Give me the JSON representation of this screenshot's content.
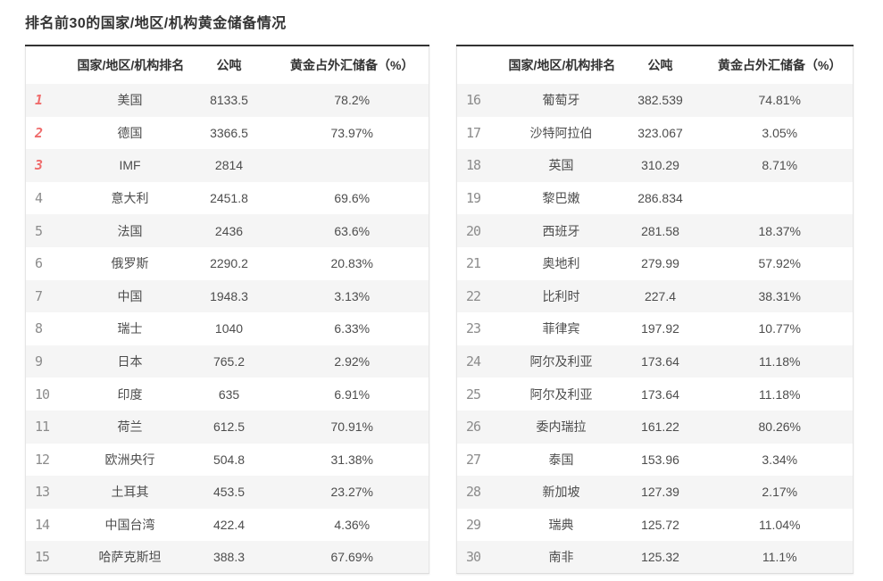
{
  "page_title": "排名前30的国家/地区/机构黄金储备情况",
  "colors": {
    "accent_rank_red": "#ef6b6b",
    "rank_gray": "#8c8c8c",
    "row_alt_bg": "#f5f5f5",
    "table_top_border": "#333333",
    "text": "#4d4d4d"
  },
  "tables": [
    {
      "headers": {
        "rank": "",
        "name": "国家/地区/机构排名",
        "tonnes": "公吨",
        "pct": "黄金占外汇储备（%）"
      },
      "rows": [
        {
          "rank": "1",
          "name": "美国",
          "tonnes": "8133.5",
          "pct": "78.2%",
          "top3": true
        },
        {
          "rank": "2",
          "name": "德国",
          "tonnes": "3366.5",
          "pct": "73.97%",
          "top3": true
        },
        {
          "rank": "3",
          "name": "IMF",
          "tonnes": "2814",
          "pct": "",
          "top3": true
        },
        {
          "rank": "4",
          "name": "意大利",
          "tonnes": "2451.8",
          "pct": "69.6%",
          "top3": false
        },
        {
          "rank": "5",
          "name": "法国",
          "tonnes": "2436",
          "pct": "63.6%",
          "top3": false
        },
        {
          "rank": "6",
          "name": "俄罗斯",
          "tonnes": "2290.2",
          "pct": "20.83%",
          "top3": false
        },
        {
          "rank": "7",
          "name": "中国",
          "tonnes": "1948.3",
          "pct": "3.13%",
          "top3": false
        },
        {
          "rank": "8",
          "name": "瑞士",
          "tonnes": "1040",
          "pct": "6.33%",
          "top3": false
        },
        {
          "rank": "9",
          "name": "日本",
          "tonnes": "765.2",
          "pct": "2.92%",
          "top3": false
        },
        {
          "rank": "10",
          "name": "印度",
          "tonnes": "635",
          "pct": "6.91%",
          "top3": false
        },
        {
          "rank": "11",
          "name": "荷兰",
          "tonnes": "612.5",
          "pct": "70.91%",
          "top3": false
        },
        {
          "rank": "12",
          "name": "欧洲央行",
          "tonnes": "504.8",
          "pct": "31.38%",
          "top3": false
        },
        {
          "rank": "13",
          "name": "土耳其",
          "tonnes": "453.5",
          "pct": "23.27%",
          "top3": false
        },
        {
          "rank": "14",
          "name": "中国台湾",
          "tonnes": "422.4",
          "pct": "4.36%",
          "top3": false
        },
        {
          "rank": "15",
          "name": "哈萨克斯坦",
          "tonnes": "388.3",
          "pct": "67.69%",
          "top3": false
        }
      ]
    },
    {
      "headers": {
        "rank": "",
        "name": "国家/地区/机构排名",
        "tonnes": "公吨",
        "pct": "黄金占外汇储备（%）"
      },
      "rows": [
        {
          "rank": "16",
          "name": "葡萄牙",
          "tonnes": "382.539",
          "pct": "74.81%",
          "top3": false
        },
        {
          "rank": "17",
          "name": "沙特阿拉伯",
          "tonnes": "323.067",
          "pct": "3.05%",
          "top3": false
        },
        {
          "rank": "18",
          "name": "英国",
          "tonnes": "310.29",
          "pct": "8.71%",
          "top3": false
        },
        {
          "rank": "19",
          "name": "黎巴嫩",
          "tonnes": "286.834",
          "pct": "",
          "top3": false
        },
        {
          "rank": "20",
          "name": "西班牙",
          "tonnes": "281.58",
          "pct": "18.37%",
          "top3": false
        },
        {
          "rank": "21",
          "name": "奥地利",
          "tonnes": "279.99",
          "pct": "57.92%",
          "top3": false
        },
        {
          "rank": "22",
          "name": "比利时",
          "tonnes": "227.4",
          "pct": "38.31%",
          "top3": false
        },
        {
          "rank": "23",
          "name": "菲律宾",
          "tonnes": "197.92",
          "pct": "10.77%",
          "top3": false
        },
        {
          "rank": "24",
          "name": "阿尔及利亚",
          "tonnes": "173.64",
          "pct": "11.18%",
          "top3": false
        },
        {
          "rank": "25",
          "name": "阿尔及利亚",
          "tonnes": "173.64",
          "pct": "11.18%",
          "top3": false
        },
        {
          "rank": "26",
          "name": "委内瑞拉",
          "tonnes": "161.22",
          "pct": "80.26%",
          "top3": false
        },
        {
          "rank": "27",
          "name": "泰国",
          "tonnes": "153.96",
          "pct": "3.34%",
          "top3": false
        },
        {
          "rank": "28",
          "name": "新加坡",
          "tonnes": "127.39",
          "pct": "2.17%",
          "top3": false
        },
        {
          "rank": "29",
          "name": "瑞典",
          "tonnes": "125.72",
          "pct": "11.04%",
          "top3": false
        },
        {
          "rank": "30",
          "name": "南非",
          "tonnes": "125.32",
          "pct": "11.1%",
          "top3": false
        }
      ]
    }
  ]
}
